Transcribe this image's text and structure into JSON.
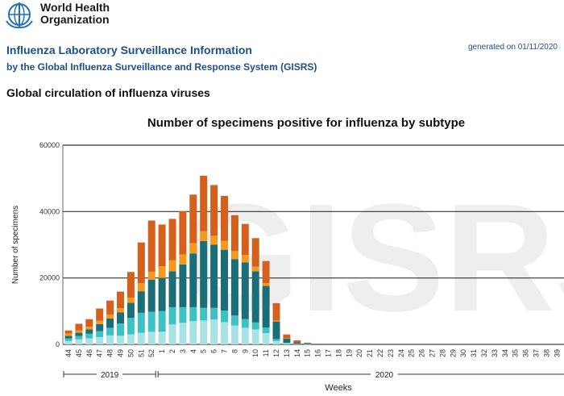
{
  "header": {
    "org_line1": "World Health",
    "org_line2": "Organization",
    "info_title": "Influenza Laboratory Surveillance Information",
    "info_subtitle": "by the Global Influenza Surveillance and Response System (GISRS)",
    "generated": "generated on 01/11/2020",
    "section_title": "Global circulation of influenza viruses"
  },
  "watermark": "GISRS",
  "colors": {
    "series1": "#a8e2e4",
    "series2": "#3cc2c4",
    "series3": "#1a6e78",
    "series4": "#f39a1e",
    "series5": "#d4601c",
    "logo": "#1c6fb8"
  },
  "chart_data": {
    "type": "bar",
    "stacked": true,
    "title": "Number of specimens positive for influenza by subtype",
    "xlabel": "Weeks",
    "ylabel": "Number of specimens",
    "ylim": [
      0,
      60000
    ],
    "yticks": [
      0,
      20000,
      40000,
      60000
    ],
    "grid": true,
    "year_labels": [
      "2019",
      "2020"
    ],
    "categories": [
      "44",
      "45",
      "46",
      "47",
      "48",
      "49",
      "50",
      "51",
      "52",
      "1",
      "2",
      "3",
      "4",
      "5",
      "6",
      "7",
      "8",
      "9",
      "10",
      "11",
      "12",
      "13",
      "14",
      "15",
      "16",
      "17",
      "18",
      "19",
      "20",
      "21",
      "22",
      "23",
      "24",
      "25",
      "26",
      "27",
      "28",
      "29",
      "30",
      "31",
      "32",
      "33",
      "34",
      "35",
      "36",
      "37",
      "38",
      "39"
    ],
    "series": [
      {
        "values": [
          1000,
          1500,
          1800,
          2200,
          2700,
          2600,
          3000,
          3500,
          3800,
          3800,
          6000,
          6500,
          7000,
          7200,
          7500,
          6700,
          5700,
          5000,
          4500,
          3400,
          1000,
          300,
          100,
          50,
          0,
          0,
          0,
          0,
          0,
          0,
          0,
          0,
          0,
          0,
          0,
          0,
          0,
          0,
          0,
          0,
          0,
          0,
          0,
          0,
          0,
          0,
          0,
          0
        ]
      },
      {
        "values": [
          800,
          1000,
          1400,
          1800,
          2300,
          3700,
          5000,
          6000,
          6000,
          6200,
          5200,
          4700,
          4200,
          3800,
          3500,
          3500,
          3000,
          2600,
          2100,
          1700,
          600,
          200,
          100,
          50,
          0,
          0,
          0,
          0,
          0,
          0,
          0,
          0,
          0,
          0,
          0,
          0,
          0,
          0,
          0,
          0,
          0,
          0,
          0,
          0,
          0,
          0,
          0,
          0
        ]
      },
      {
        "values": [
          800,
          1000,
          1300,
          2100,
          2800,
          3300,
          4500,
          6500,
          9700,
          10000,
          10800,
          12900,
          16200,
          20100,
          19000,
          18300,
          17000,
          17100,
          15400,
          12500,
          5300,
          1300,
          400,
          100,
          0,
          0,
          0,
          0,
          0,
          0,
          0,
          0,
          0,
          0,
          0,
          0,
          0,
          0,
          0,
          0,
          0,
          0,
          0,
          0,
          0,
          0,
          0,
          0
        ]
      },
      {
        "values": [
          600,
          700,
          800,
          1000,
          1200,
          1300,
          1600,
          2400,
          2400,
          3500,
          3300,
          3000,
          3100,
          3000,
          2700,
          2700,
          2400,
          2200,
          1400,
          800,
          300,
          100,
          0,
          0,
          0,
          0,
          0,
          0,
          0,
          0,
          0,
          0,
          0,
          0,
          0,
          0,
          0,
          0,
          0,
          0,
          0,
          0,
          0,
          0,
          0,
          0,
          0,
          0
        ]
      },
      {
        "values": [
          1000,
          2000,
          2300,
          3700,
          4200,
          5000,
          7700,
          12300,
          15400,
          12600,
          12500,
          13000,
          14600,
          16700,
          15300,
          13500,
          10800,
          9400,
          8600,
          6700,
          5200,
          1100,
          600,
          300,
          0,
          0,
          0,
          0,
          0,
          0,
          0,
          0,
          0,
          0,
          0,
          0,
          0,
          0,
          0,
          0,
          0,
          0,
          0,
          0,
          0,
          0,
          0,
          0
        ]
      }
    ]
  }
}
